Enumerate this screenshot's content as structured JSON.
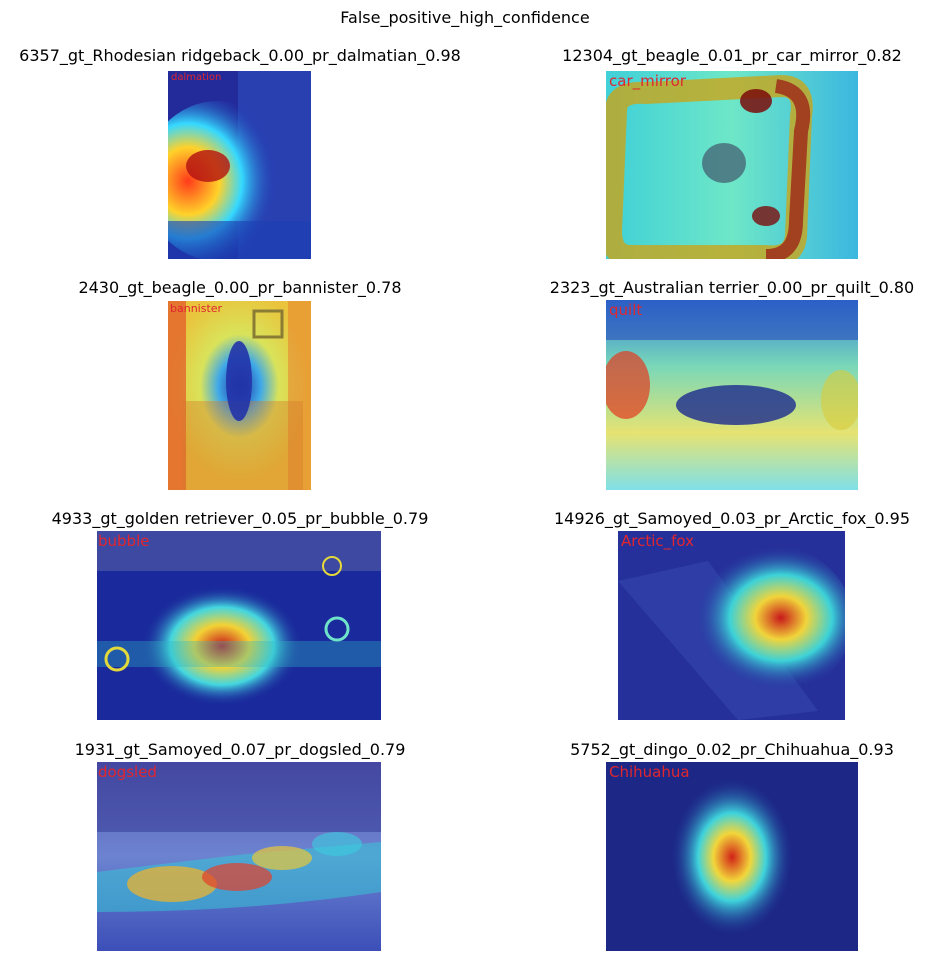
{
  "figure": {
    "title": "False_positive_high_confidence"
  },
  "panels": [
    {
      "title": "6357_gt_Rhodesian ridgeback_0.00_pr_dalmatian_0.98",
      "overlay_label": "dalmation"
    },
    {
      "title": "12304_gt_beagle_0.01_pr_car_mirror_0.82",
      "overlay_label": "car_mirror"
    },
    {
      "title": "2430_gt_beagle_0.00_pr_bannister_0.78",
      "overlay_label": "bannister"
    },
    {
      "title": "2323_gt_Australian terrier_0.00_pr_quilt_0.80",
      "overlay_label": "quilt"
    },
    {
      "title": "4933_gt_golden retriever_0.05_pr_bubble_0.79",
      "overlay_label": "bubble"
    },
    {
      "title": "14926_gt_Samoyed_0.03_pr_Arctic_fox_0.95",
      "overlay_label": "Arctic_fox"
    },
    {
      "title": "1931_gt_Samoyed_0.07_pr_dogsled_0.79",
      "overlay_label": "dogsled"
    },
    {
      "title": "5752_gt_dingo_0.02_pr_Chihuahua_0.93",
      "overlay_label": "Chihuahua"
    }
  ],
  "colors": {
    "label_text": "#e0262f"
  }
}
